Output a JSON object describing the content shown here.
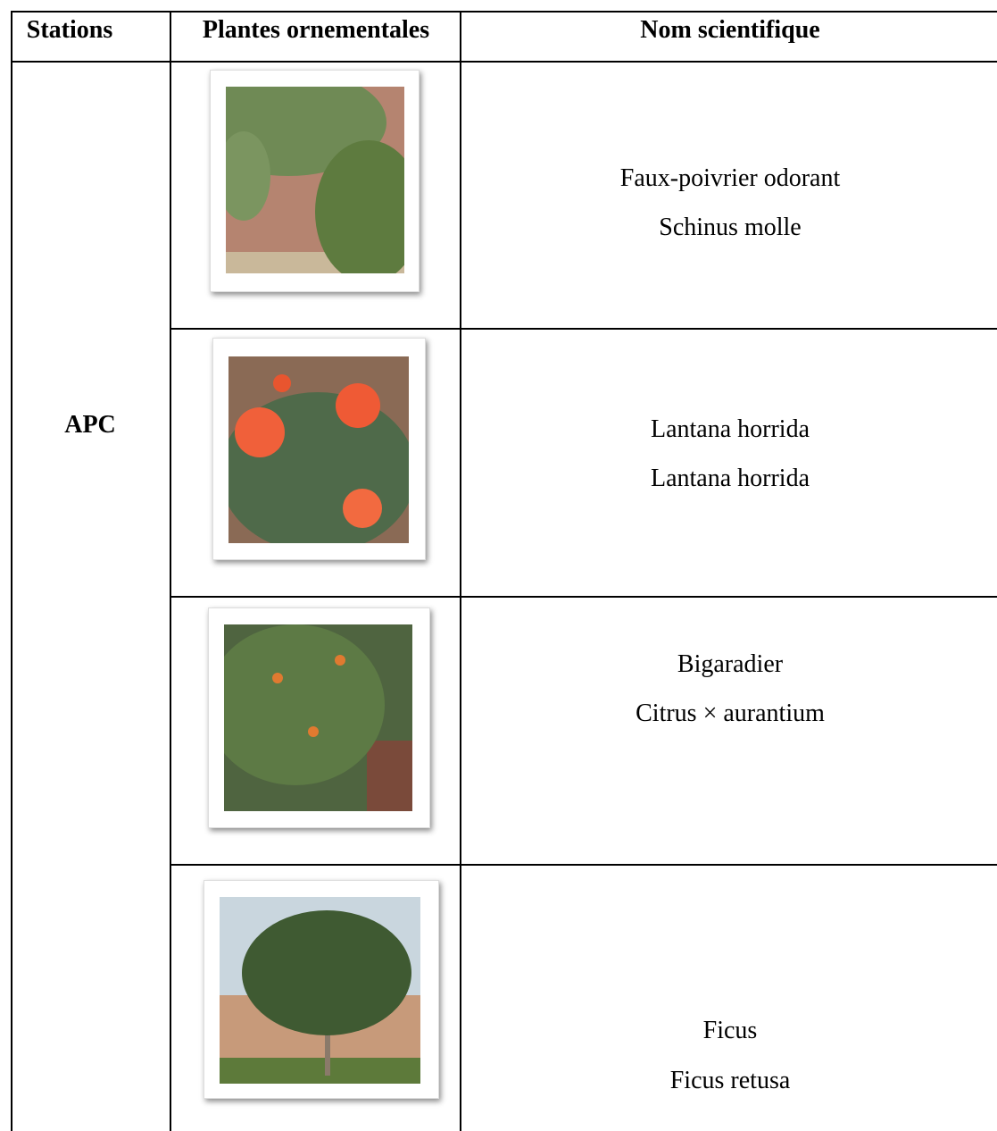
{
  "header": {
    "columns": [
      "Stations",
      "Plantes ornementales",
      "Nom scientifique"
    ]
  },
  "table": {
    "station": "APC",
    "rows": [
      {
        "common": "Faux-poivrier odorant",
        "scientific": "Schinus molle"
      },
      {
        "common": "Lantana horrida",
        "scientific": "Lantana horrida"
      },
      {
        "common": "Bigaradier",
        "scientific": "Citrus × aurantium"
      },
      {
        "common": "Ficus",
        "scientific": "Ficus retusa"
      }
    ]
  }
}
